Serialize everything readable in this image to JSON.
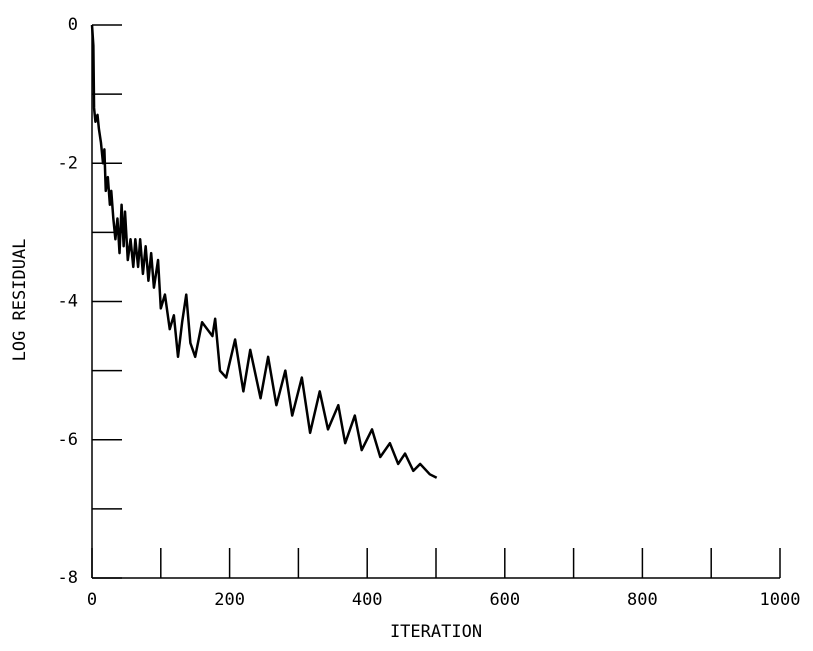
{
  "chart_data": {
    "type": "line",
    "xlabel": "ITERATION",
    "ylabel": "LOG RESIDUAL",
    "xlim": [
      0,
      1000
    ],
    "ylim": [
      -8,
      0
    ],
    "xticks": [
      0,
      200,
      400,
      600,
      800,
      1000
    ],
    "xminor_ticks": [
      100,
      300,
      500,
      700,
      900
    ],
    "yticks": [
      -8,
      -6,
      -4,
      -2,
      0
    ],
    "yminor_ticks": [
      -7,
      -5,
      -3,
      -1
    ],
    "series": [
      {
        "color": "#000000",
        "x": [
          0,
          2,
          3,
          5,
          8,
          10,
          13,
          16,
          18,
          20,
          23,
          26,
          28,
          31,
          34,
          37,
          40,
          43,
          46,
          48,
          52,
          56,
          60,
          63,
          67,
          70,
          74,
          78,
          82,
          86,
          90,
          96,
          100,
          106,
          113,
          119,
          125,
          131,
          137,
          143,
          150,
          160,
          175,
          179,
          186,
          195,
          208,
          220,
          230,
          245,
          256,
          268,
          281,
          291,
          305,
          317,
          331,
          343,
          358,
          368,
          382,
          392,
          407,
          419,
          433,
          445,
          455,
          467,
          477,
          491,
          501
        ],
        "values": [
          0,
          -0.3,
          -1.2,
          -1.4,
          -1.3,
          -1.5,
          -1.7,
          -2.0,
          -1.8,
          -2.4,
          -2.2,
          -2.6,
          -2.4,
          -2.8,
          -3.1,
          -2.8,
          -3.3,
          -2.6,
          -3.2,
          -2.7,
          -3.4,
          -3.1,
          -3.5,
          -3.1,
          -3.5,
          -3.1,
          -3.6,
          -3.2,
          -3.7,
          -3.3,
          -3.8,
          -3.4,
          -4.1,
          -3.9,
          -4.4,
          -4.2,
          -4.8,
          -4.3,
          -3.9,
          -4.6,
          -4.8,
          -4.3,
          -4.5,
          -4.25,
          -5.0,
          -5.1,
          -4.55,
          -5.3,
          -4.7,
          -5.4,
          -4.8,
          -5.5,
          -5.0,
          -5.65,
          -5.1,
          -5.9,
          -5.3,
          -5.85,
          -5.5,
          -6.05,
          -5.65,
          -6.15,
          -5.85,
          -6.25,
          -6.05,
          -6.35,
          -6.2,
          -6.45,
          -6.35,
          -6.5,
          -6.55
        ]
      }
    ]
  }
}
